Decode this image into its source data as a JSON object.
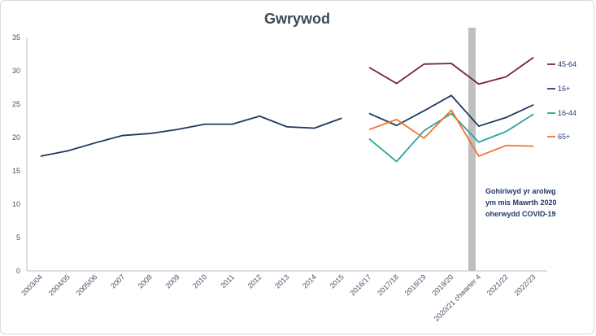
{
  "chart_data": {
    "type": "line",
    "title": "Gwrywod",
    "ylim": [
      0,
      35
    ],
    "yticks": [
      0,
      5,
      10,
      15,
      20,
      25,
      30,
      35
    ],
    "categories": [
      "2003/04",
      "2004/05",
      "2005/06",
      "2007",
      "2008",
      "2009",
      "2010",
      "2011",
      "2012",
      "2013",
      "2014",
      "2015",
      "2016/17",
      "2017/18",
      "2018/19",
      "2019/20",
      "2020/21 chwarter 4",
      "2021/22",
      "2022/23"
    ],
    "series": [
      {
        "name": "",
        "color": "#203864",
        "values": [
          17.2,
          18.0,
          19.2,
          20.3,
          20.6,
          21.2,
          22.0,
          22.0,
          23.2,
          21.6,
          21.4,
          22.9,
          null,
          null,
          null,
          null,
          null,
          null,
          null
        ]
      },
      {
        "name": "45-64",
        "color": "#7b1e4e",
        "values": [
          null,
          null,
          null,
          null,
          null,
          null,
          null,
          null,
          null,
          null,
          null,
          null,
          30.5,
          28.1,
          31.0,
          31.1,
          28.0,
          29.1,
          32.0
        ]
      },
      {
        "name": "16+",
        "color": "#203864",
        "values": [
          null,
          null,
          null,
          null,
          null,
          null,
          null,
          null,
          null,
          null,
          null,
          null,
          23.6,
          21.8,
          24.0,
          26.3,
          21.7,
          23.0,
          24.9
        ]
      },
      {
        "name": "16-44",
        "color": "#26a69a",
        "values": [
          null,
          null,
          null,
          null,
          null,
          null,
          null,
          null,
          null,
          null,
          null,
          null,
          19.8,
          16.4,
          21.0,
          23.6,
          19.3,
          20.9,
          23.5
        ]
      },
      {
        "name": "65+",
        "color": "#f4732c",
        "values": [
          null,
          null,
          null,
          null,
          null,
          null,
          null,
          null,
          null,
          null,
          null,
          null,
          21.2,
          22.7,
          19.9,
          24.1,
          17.2,
          18.8,
          18.7
        ]
      }
    ],
    "annotation": [
      "Gohiriwyd yr arolwg",
      "ym mis Mawrth 2020",
      "oherwydd COVID-19"
    ],
    "band_after_category": "2019/20",
    "band_color": "#bfbfbf",
    "grid": false,
    "legend": "right, at line ends"
  }
}
